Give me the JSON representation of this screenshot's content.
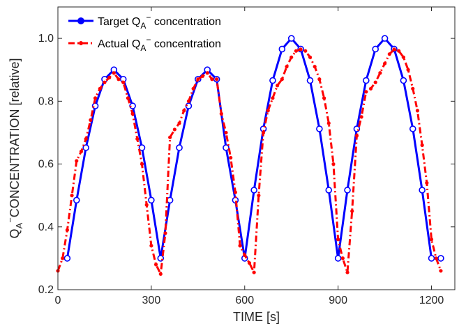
{
  "chart_data": {
    "type": "line",
    "xlabel": "TIME [s]",
    "ylabel": {
      "prefix": "Q",
      "sub": "A",
      "sup": "−",
      "rest": "CONCENTRATION [relative]"
    },
    "xlim": [
      0,
      1275
    ],
    "ylim": [
      0.2,
      1.1
    ],
    "xticks": [
      0,
      300,
      600,
      900,
      1200
    ],
    "yticks": [
      0.2,
      0.4,
      0.6,
      0.8,
      1.0
    ],
    "ytick_labels": [
      "0.2",
      "0.4",
      "0.6",
      "0.8",
      "1.0"
    ],
    "grid": false,
    "legend_position": "top-left",
    "series": [
      {
        "name": {
          "prefix": "Target Q",
          "sub": "A",
          "sup": "−",
          "suffix": " concentration"
        },
        "color": "#0000ff",
        "line_style": "solid",
        "marker": "circle",
        "x": [
          30,
          60,
          90,
          120,
          150,
          180,
          210,
          240,
          270,
          300,
          330,
          360,
          390,
          420,
          450,
          480,
          510,
          540,
          570,
          600,
          630,
          660,
          690,
          720,
          750,
          780,
          810,
          840,
          870,
          900,
          930,
          960,
          990,
          1020,
          1050,
          1080,
          1110,
          1140,
          1170,
          1200,
          1230
        ],
        "y": [
          0.3,
          0.485,
          0.652,
          0.785,
          0.87,
          0.9,
          0.87,
          0.785,
          0.652,
          0.485,
          0.3,
          0.485,
          0.652,
          0.785,
          0.87,
          0.9,
          0.87,
          0.652,
          0.485,
          0.3,
          0.517,
          0.712,
          0.866,
          0.966,
          1.0,
          0.966,
          0.866,
          0.712,
          0.517,
          0.3,
          0.517,
          0.712,
          0.866,
          0.966,
          1.0,
          0.966,
          0.866,
          0.712,
          0.517,
          0.3,
          0.3
        ]
      },
      {
        "name": {
          "prefix": "Actual Q",
          "sub": "A",
          "sup": "−",
          "suffix": " concentration"
        },
        "color": "#ff0000",
        "line_style": "dashdot",
        "marker": "dot",
        "x": [
          0,
          15,
          30,
          45,
          60,
          75,
          90,
          105,
          120,
          135,
          150,
          165,
          180,
          195,
          210,
          225,
          240,
          255,
          270,
          285,
          300,
          315,
          330,
          345,
          360,
          375,
          390,
          405,
          420,
          435,
          450,
          465,
          480,
          495,
          510,
          525,
          540,
          555,
          570,
          585,
          600,
          615,
          630,
          645,
          660,
          675,
          690,
          705,
          720,
          735,
          750,
          765,
          780,
          795,
          810,
          825,
          840,
          855,
          870,
          885,
          900,
          915,
          930,
          945,
          960,
          975,
          990,
          1005,
          1020,
          1035,
          1050,
          1065,
          1080,
          1095,
          1110,
          1125,
          1140,
          1155,
          1170,
          1185,
          1200,
          1215,
          1230
        ],
        "y": [
          0.26,
          0.3,
          0.39,
          0.5,
          0.61,
          0.64,
          0.68,
          0.74,
          0.81,
          0.84,
          0.86,
          0.875,
          0.89,
          0.87,
          0.86,
          0.81,
          0.76,
          0.68,
          0.6,
          0.47,
          0.34,
          0.28,
          0.25,
          0.38,
          0.685,
          0.71,
          0.73,
          0.77,
          0.8,
          0.84,
          0.87,
          0.88,
          0.89,
          0.87,
          0.87,
          0.76,
          0.7,
          0.62,
          0.51,
          0.34,
          0.31,
          0.285,
          0.255,
          0.5,
          0.7,
          0.77,
          0.81,
          0.85,
          0.87,
          0.91,
          0.94,
          0.96,
          0.965,
          0.96,
          0.94,
          0.91,
          0.87,
          0.81,
          0.73,
          0.6,
          0.36,
          0.3,
          0.255,
          0.45,
          0.69,
          0.75,
          0.83,
          0.84,
          0.86,
          0.89,
          0.92,
          0.95,
          0.965,
          0.96,
          0.94,
          0.9,
          0.84,
          0.77,
          0.66,
          0.54,
          0.36,
          0.3,
          0.26
        ]
      }
    ]
  }
}
